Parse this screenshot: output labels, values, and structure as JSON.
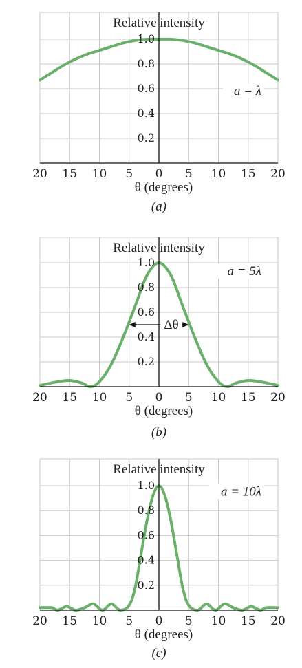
{
  "chart_data": [
    {
      "type": "line",
      "panel": "(a)",
      "caption": "(a)",
      "annotation": "a = λ",
      "a_over_lambda": 1,
      "ylabel": "Relative intensity",
      "xlabel": "θ (degrees)",
      "x_ticks": [
        "20",
        "15",
        "10",
        "5",
        "0",
        "5",
        "10",
        "15",
        "20"
      ],
      "y_ticks": [
        "1.0",
        "0.8",
        "0.6",
        "0.4",
        "0.2"
      ],
      "xlim": [
        -20,
        20
      ],
      "ylim": [
        0,
        1.0
      ],
      "grid": true,
      "series": [
        {
          "x": [
            -20,
            -18,
            -16,
            -14,
            -12,
            -10,
            -8,
            -6,
            -4,
            -2,
            0,
            2,
            4,
            6,
            8,
            10,
            12,
            14,
            16,
            18,
            20
          ],
          "y": [
            0.67,
            0.73,
            0.79,
            0.84,
            0.88,
            0.91,
            0.94,
            0.97,
            0.99,
            1.0,
            1.0,
            1.0,
            0.99,
            0.97,
            0.94,
            0.91,
            0.88,
            0.84,
            0.79,
            0.73,
            0.67
          ]
        }
      ]
    },
    {
      "type": "line",
      "panel": "(b)",
      "caption": "(b)",
      "annotation": "a = 5λ",
      "a_over_lambda": 5,
      "ylabel": "Relative intensity",
      "xlabel": "θ (degrees)",
      "width_label": "Δθ",
      "x_ticks": [
        "20",
        "15",
        "10",
        "5",
        "0",
        "5",
        "10",
        "15",
        "20"
      ],
      "y_ticks": [
        "1.0",
        "0.8",
        "0.6",
        "0.4",
        "0.2"
      ],
      "xlim": [
        -20,
        20
      ],
      "ylim": [
        0,
        1.0
      ],
      "grid": true,
      "series": [
        {
          "x": [
            -20,
            -17,
            -15,
            -13,
            -11.5,
            -10,
            -8,
            -6,
            -4,
            -2,
            0,
            2,
            4,
            6,
            8,
            10,
            11.5,
            13,
            15,
            17,
            20
          ],
          "y": [
            0.01,
            0.04,
            0.05,
            0.03,
            0.0,
            0.04,
            0.18,
            0.4,
            0.65,
            0.9,
            1.0,
            0.9,
            0.65,
            0.4,
            0.18,
            0.04,
            0.0,
            0.03,
            0.05,
            0.04,
            0.01
          ]
        }
      ]
    },
    {
      "type": "line",
      "panel": "(c)",
      "caption": "(c)",
      "annotation": "a = 10λ",
      "a_over_lambda": 10,
      "ylabel": "Relative intensity",
      "xlabel": "θ (degrees)",
      "x_ticks": [
        "20",
        "15",
        "10",
        "5",
        "0",
        "5",
        "10",
        "15",
        "20"
      ],
      "y_ticks": [
        "1.0",
        "0.8",
        "0.6",
        "0.4",
        "0.2"
      ],
      "xlim": [
        -20,
        20
      ],
      "ylim": [
        0,
        1.0
      ],
      "grid": true,
      "series": [
        {
          "x": [
            -20,
            -18,
            -17,
            -15.5,
            -14,
            -12.5,
            -11,
            -9.5,
            -8,
            -6.5,
            -5,
            -4,
            -3,
            -2,
            -1,
            0,
            1,
            2,
            3,
            4,
            5,
            6.5,
            8,
            9.5,
            11,
            12.5,
            14,
            15.5,
            17,
            18,
            20
          ],
          "y": [
            0.02,
            0.02,
            0.0,
            0.03,
            0.0,
            0.02,
            0.05,
            0.0,
            0.05,
            0.0,
            0.04,
            0.18,
            0.45,
            0.72,
            0.92,
            1.0,
            0.92,
            0.72,
            0.45,
            0.18,
            0.04,
            0.0,
            0.05,
            0.0,
            0.05,
            0.02,
            0.0,
            0.03,
            0.0,
            0.02,
            0.02
          ]
        }
      ]
    }
  ],
  "style": {
    "curve_color": "#6ab06a"
  }
}
